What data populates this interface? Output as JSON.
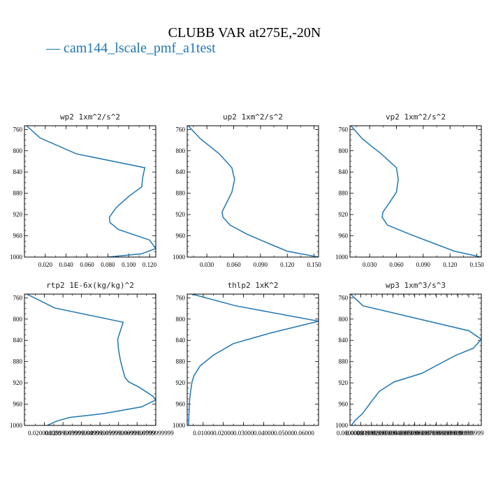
{
  "title": "CLUBB VAR at275E,-20N",
  "legend": {
    "label": "— cam144_lscale_pmf_a1test",
    "color": "#1f77b4"
  },
  "chart_data": [
    {
      "type": "line",
      "title": "wp2   1xm^2/s^2",
      "xlim": [
        0.0,
        0.126
      ],
      "ylim": [
        1000,
        753
      ],
      "xticks": [
        0.02,
        0.04,
        0.06,
        0.08,
        0.1,
        0.12
      ],
      "xtick_labels": [
        "0.020",
        "0.040",
        "0.060",
        "0.080",
        "0.100",
        "0.120"
      ],
      "yticks": [
        760,
        800,
        840,
        880,
        920,
        960,
        1000
      ],
      "series": [
        {
          "x": [
            0.002,
            0.015,
            0.05,
            0.1155,
            0.1135,
            0.1125,
            0.1,
            0.088,
            0.0815,
            0.082,
            0.09,
            0.12,
            0.126,
            0.112,
            0.08
          ],
          "y": [
            753,
            776,
            806,
            832,
            850,
            868,
            886,
            907,
            925,
            935,
            948,
            968,
            984,
            994,
            1000
          ]
        }
      ]
    },
    {
      "type": "line",
      "title": "up2   1xm^2/s^2",
      "xlim": [
        0.008,
        0.155
      ],
      "ylim": [
        1000,
        753
      ],
      "xticks": [
        0.03,
        0.06,
        0.09,
        0.12,
        0.15
      ],
      "xtick_labels": [
        "0.030",
        "0.060",
        "0.090",
        "0.120",
        "0.150"
      ],
      "yticks": [
        760,
        800,
        840,
        880,
        920,
        960,
        1000
      ],
      "series": [
        {
          "x": [
            0.009,
            0.023,
            0.044,
            0.058,
            0.061,
            0.058,
            0.052,
            0.047,
            0.048,
            0.056,
            0.075,
            0.1,
            0.12,
            0.155
          ],
          "y": [
            753,
            778,
            806,
            832,
            854,
            878,
            898,
            915,
            925,
            940,
            957,
            975,
            989,
            1000
          ]
        }
      ]
    },
    {
      "type": "line",
      "title": "vp2   1xm^2/s^2",
      "xlim": [
        0.008,
        0.155
      ],
      "ylim": [
        1000,
        753
      ],
      "xticks": [
        0.03,
        0.06,
        0.09,
        0.12,
        0.15
      ],
      "xtick_labels": [
        "0.030",
        "0.060",
        "0.090",
        "0.120",
        "0.150"
      ],
      "yticks": [
        760,
        800,
        840,
        880,
        920,
        960,
        1000
      ],
      "series": [
        {
          "x": [
            0.009,
            0.022,
            0.043,
            0.06,
            0.062,
            0.06,
            0.052,
            0.045,
            0.044,
            0.05,
            0.075,
            0.103,
            0.125,
            0.155
          ],
          "y": [
            753,
            778,
            806,
            832,
            854,
            878,
            898,
            915,
            925,
            940,
            957,
            975,
            989,
            1000
          ]
        }
      ]
    },
    {
      "type": "line",
      "title": "rtp2   1E-6x(kg/kg)^2",
      "xlim": [
        0.0092,
        0.0801
      ],
      "ylim": [
        1000,
        753
      ],
      "xticks": [
        0.02,
        0.03,
        0.04,
        0.05,
        0.06,
        0.07,
        0.08
      ],
      "xtick_labels": [
        "0.020000000",
        "0.0299999999",
        "0.0399999999",
        "0.0499999999",
        "0.0599999999",
        "0.0699999999",
        "0.0799999999"
      ],
      "yticks": [
        760,
        800,
        840,
        880,
        920,
        960,
        1000
      ],
      "series": [
        {
          "x": [
            0.0105,
            0.0255,
            0.0625,
            0.0595,
            0.06,
            0.061,
            0.0625,
            0.0635,
            0.0655,
            0.071,
            0.0785,
            0.0801,
            0.0725,
            0.0515,
            0.0335,
            0.0265,
            0.0215
          ],
          "y": [
            753,
            779,
            806,
            838,
            858,
            878,
            898,
            910,
            918,
            928,
            945,
            952,
            965,
            978,
            985,
            992,
            1000
          ]
        }
      ]
    },
    {
      "type": "line",
      "title": "thlp2   1xK^2",
      "xlim": [
        0.0021,
        0.0672
      ],
      "ylim": [
        1000,
        753
      ],
      "xticks": [
        0.01,
        0.02,
        0.03,
        0.04,
        0.05,
        0.06
      ],
      "xtick_labels": [
        "0.01000",
        "0.02000",
        "0.03000",
        "0.04000",
        "0.05000",
        "0.06000"
      ],
      "yticks": [
        760,
        800,
        840,
        880,
        920,
        960,
        1000
      ],
      "series": [
        {
          "x": [
            0.0045,
            0.026,
            0.0672,
            0.0435,
            0.025,
            0.015,
            0.0085,
            0.0055,
            0.0045,
            0.0038,
            0.0032,
            0.003,
            0.0028
          ],
          "y": [
            753,
            775,
            804,
            826,
            846,
            868,
            888,
            906,
            918,
            935,
            955,
            975,
            1000
          ]
        }
      ]
    },
    {
      "type": "line",
      "title": "wp3   1xm^3/s^3",
      "xlim": [
        0.0,
        0.1215
      ],
      "ylim": [
        1000,
        753
      ],
      "xticks": [
        0.0,
        0.0099,
        0.0199,
        0.0299,
        0.0399,
        0.0499,
        0.0599,
        0.0699,
        0.0799,
        0.0899,
        0.0999,
        0.1099
      ],
      "xtick_labels": [
        "0.0000000",
        "0.00999999",
        "0.01999999",
        "0.02999999",
        "0.03999999",
        "0.04999999",
        "0.05999999",
        "0.06999999",
        "0.07999999",
        "0.08999999",
        "0.09999999",
        "0.10999999"
      ],
      "yticks": [
        760,
        800,
        840,
        880,
        920,
        960,
        1000
      ],
      "series": [
        {
          "x": [
            0.0005,
            0.012,
            0.11,
            0.1215,
            0.114,
            0.098,
            0.0665,
            0.041,
            0.027,
            0.0195,
            0.0115,
            0.005,
            0.0012
          ],
          "y": [
            753,
            775,
            822,
            838,
            855,
            868,
            902,
            918,
            936,
            956,
            978,
            990,
            1000
          ]
        }
      ]
    }
  ]
}
